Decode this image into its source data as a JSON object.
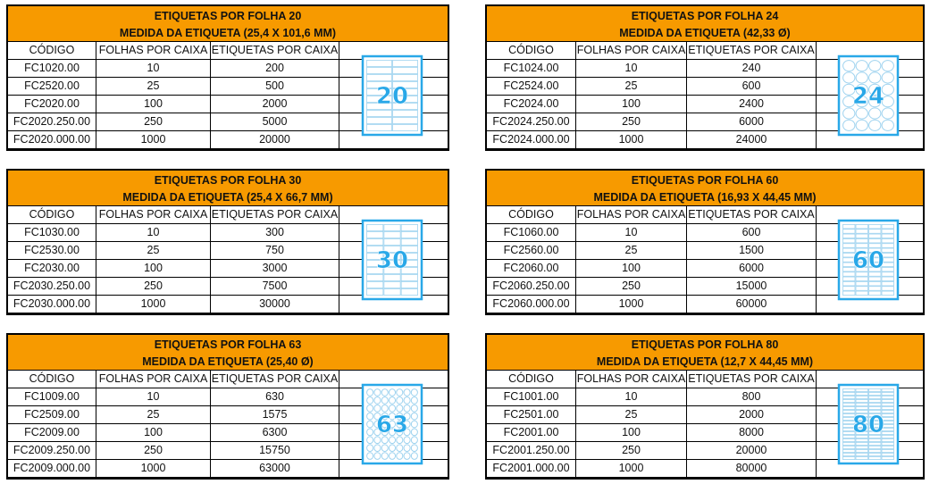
{
  "columns": [
    "CÓDIGO",
    "FOLHAS POR CAIXA",
    "ETIQUETAS POR CAIXA"
  ],
  "colors": {
    "header": "#f79a00",
    "sheet_blue": "#29a8e8"
  },
  "tables": [
    {
      "title": "ETIQUETAS POR FOLHA 20",
      "subtitle": "MEDIDA DA ETIQUETA (25,4 X 101,6 MM)",
      "image_number": "20",
      "image_icon": "label-sheet-20-rect-icon",
      "rows": [
        [
          "FC1020.00",
          "10",
          "200"
        ],
        [
          "FC2520.00",
          "25",
          "500"
        ],
        [
          "FC2020.00",
          "100",
          "2000"
        ],
        [
          "FC2020.250.00",
          "250",
          "5000"
        ],
        [
          "FC2020.000.00",
          "1000",
          "20000"
        ]
      ]
    },
    {
      "title": "ETIQUETAS POR FOLHA 24",
      "subtitle": "MEDIDA DA ETIQUETA (42,33 Ø)",
      "image_number": "24",
      "image_icon": "label-sheet-24-round-icon",
      "rows": [
        [
          "FC1024.00",
          "10",
          "240"
        ],
        [
          "FC2524.00",
          "25",
          "600"
        ],
        [
          "FC2024.00",
          "100",
          "2400"
        ],
        [
          "FC2024.250.00",
          "250",
          "6000"
        ],
        [
          "FC2024.000.00",
          "1000",
          "24000"
        ]
      ]
    },
    {
      "title": "ETIQUETAS POR FOLHA 30",
      "subtitle": "MEDIDA DA ETIQUETA (25,4 X 66,7 MM)",
      "image_number": "30",
      "image_icon": "label-sheet-30-rect-icon",
      "rows": [
        [
          "FC1030.00",
          "10",
          "300"
        ],
        [
          "FC2530.00",
          "25",
          "750"
        ],
        [
          "FC2030.00",
          "100",
          "3000"
        ],
        [
          "FC2030.250.00",
          "250",
          "7500"
        ],
        [
          "FC2030.000.00",
          "1000",
          "30000"
        ]
      ]
    },
    {
      "title": "ETIQUETAS POR FOLHA 60",
      "subtitle": "MEDIDA DA ETIQUETA (16,93 X 44,45 MM)",
      "image_number": "60",
      "image_icon": "label-sheet-60-rect-icon",
      "rows": [
        [
          "FC1060.00",
          "10",
          "600"
        ],
        [
          "FC2560.00",
          "25",
          "1500"
        ],
        [
          "FC2060.00",
          "100",
          "6000"
        ],
        [
          "FC2060.250.00",
          "250",
          "15000"
        ],
        [
          "FC2060.000.00",
          "1000",
          "60000"
        ]
      ]
    },
    {
      "title": "ETIQUETAS POR FOLHA 63",
      "subtitle": "MEDIDA DA ETIQUETA (25,40 Ø)",
      "image_number": "63",
      "image_icon": "label-sheet-63-round-icon",
      "rows": [
        [
          "FC1009.00",
          "10",
          "630"
        ],
        [
          "FC2509.00",
          "25",
          "1575"
        ],
        [
          "FC2009.00",
          "100",
          "6300"
        ],
        [
          "FC2009.250.00",
          "250",
          "15750"
        ],
        [
          "FC2009.000.00",
          "1000",
          "63000"
        ]
      ]
    },
    {
      "title": "ETIQUETAS POR FOLHA 80",
      "subtitle": "MEDIDA DA ETIQUETA (12,7 X 44,45 MM)",
      "image_number": "80",
      "image_icon": "label-sheet-80-rect-icon",
      "rows": [
        [
          "FC1001.00",
          "10",
          "800"
        ],
        [
          "FC2501.00",
          "25",
          "2000"
        ],
        [
          "FC2001.00",
          "100",
          "8000"
        ],
        [
          "FC2001.250.00",
          "250",
          "20000"
        ],
        [
          "FC2001.000.00",
          "1000",
          "80000"
        ]
      ]
    }
  ]
}
